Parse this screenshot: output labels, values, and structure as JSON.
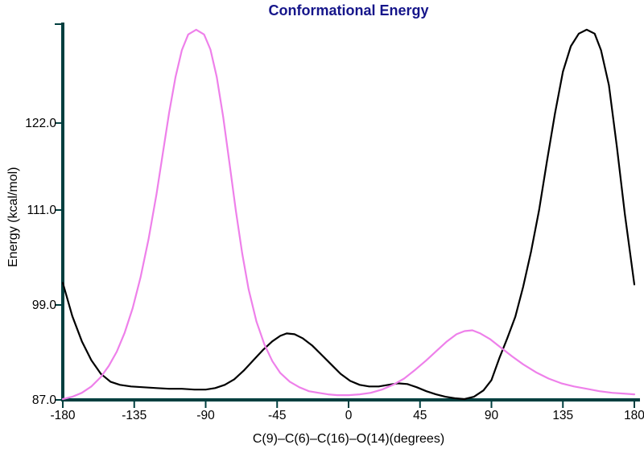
{
  "colors": {
    "background": "#ffffff",
    "title": "#15158a",
    "axis": "#003f3f",
    "text": "#000000"
  },
  "chart_data": {
    "type": "line",
    "title": "Conformational Energy",
    "xlabel": "C(9)–C(6)–C(16)–O(14)(degrees)",
    "ylabel": "Energy (kcal/mol)",
    "xlim": [
      -180,
      180
    ],
    "ylim": [
      87,
      134.5
    ],
    "x_ticks": [
      -180,
      -135,
      -90,
      -45,
      0,
      45,
      90,
      135,
      180
    ],
    "x_tick_labels": [
      "-180",
      "-135",
      "-90",
      "-45",
      "0",
      "45",
      "90",
      "135",
      "180"
    ],
    "y_ticks": [
      87,
      99,
      111,
      122
    ],
    "y_tick_labels": [
      "87.0",
      "99.0",
      "111.0",
      "122.0"
    ],
    "grid": false,
    "legend": "none",
    "series": [
      {
        "name": "black",
        "color": "#000000",
        "points": [
          [
            -180,
            101.8
          ],
          [
            -174,
            97.6
          ],
          [
            -168,
            94.4
          ],
          [
            -162,
            92.0
          ],
          [
            -156,
            90.3
          ],
          [
            -150,
            89.3
          ],
          [
            -144,
            88.9
          ],
          [
            -137,
            88.7
          ],
          [
            -129,
            88.6
          ],
          [
            -121,
            88.5
          ],
          [
            -113,
            88.4
          ],
          [
            -105,
            88.4
          ],
          [
            -97,
            88.3
          ],
          [
            -90,
            88.3
          ],
          [
            -84,
            88.5
          ],
          [
            -78,
            88.9
          ],
          [
            -72,
            89.6
          ],
          [
            -66,
            90.7
          ],
          [
            -60,
            92.0
          ],
          [
            -54,
            93.3
          ],
          [
            -48,
            94.4
          ],
          [
            -43,
            95.1
          ],
          [
            -39,
            95.4
          ],
          [
            -34,
            95.3
          ],
          [
            -29,
            94.8
          ],
          [
            -23,
            93.9
          ],
          [
            -17,
            92.7
          ],
          [
            -11,
            91.5
          ],
          [
            -5,
            90.3
          ],
          [
            1,
            89.4
          ],
          [
            7,
            88.9
          ],
          [
            13,
            88.7
          ],
          [
            19,
            88.7
          ],
          [
            25,
            88.9
          ],
          [
            31,
            89.1
          ],
          [
            37,
            89.0
          ],
          [
            43,
            88.6
          ],
          [
            49,
            88.1
          ],
          [
            55,
            87.7
          ],
          [
            61,
            87.4
          ],
          [
            67,
            87.2
          ],
          [
            73,
            87.1
          ],
          [
            79,
            87.4
          ],
          [
            85,
            88.2
          ],
          [
            90,
            89.5
          ],
          [
            95,
            92.3
          ],
          [
            100,
            94.8
          ],
          [
            105,
            97.5
          ],
          [
            110,
            101.3
          ],
          [
            115,
            105.8
          ],
          [
            120,
            111.0
          ],
          [
            125,
            117.2
          ],
          [
            130,
            123.2
          ],
          [
            135,
            128.5
          ],
          [
            140,
            131.7
          ],
          [
            145,
            133.3
          ],
          [
            150,
            133.8
          ],
          [
            155,
            133.3
          ],
          [
            159,
            131.2
          ],
          [
            164,
            126.8
          ],
          [
            169,
            119.0
          ],
          [
            174,
            110.5
          ],
          [
            180,
            101.6
          ]
        ]
      },
      {
        "name": "magenta",
        "color": "#ee80ea",
        "points": [
          [
            -180,
            87.1
          ],
          [
            -174,
            87.4
          ],
          [
            -168,
            87.9
          ],
          [
            -162,
            88.7
          ],
          [
            -156,
            89.9
          ],
          [
            -151,
            91.3
          ],
          [
            -146,
            93.1
          ],
          [
            -141,
            95.5
          ],
          [
            -136,
            98.6
          ],
          [
            -131,
            102.5
          ],
          [
            -126,
            107.3
          ],
          [
            -121,
            113.0
          ],
          [
            -117,
            118.2
          ],
          [
            -113,
            123.3
          ],
          [
            -109,
            127.8
          ],
          [
            -105,
            131.2
          ],
          [
            -101,
            133.2
          ],
          [
            -96,
            133.8
          ],
          [
            -91,
            133.2
          ],
          [
            -87,
            131.3
          ],
          [
            -83,
            127.8
          ],
          [
            -79,
            122.8
          ],
          [
            -75,
            116.9
          ],
          [
            -71,
            110.9
          ],
          [
            -67,
            105.5
          ],
          [
            -63,
            101.0
          ],
          [
            -58,
            96.9
          ],
          [
            -53,
            94.0
          ],
          [
            -48,
            91.9
          ],
          [
            -43,
            90.4
          ],
          [
            -37,
            89.3
          ],
          [
            -31,
            88.6
          ],
          [
            -25,
            88.1
          ],
          [
            -19,
            87.9
          ],
          [
            -13,
            87.7
          ],
          [
            -7,
            87.6
          ],
          [
            0,
            87.6
          ],
          [
            7,
            87.7
          ],
          [
            14,
            87.9
          ],
          [
            21,
            88.3
          ],
          [
            28,
            88.9
          ],
          [
            35,
            89.7
          ],
          [
            42,
            90.8
          ],
          [
            49,
            92.0
          ],
          [
            56,
            93.3
          ],
          [
            62,
            94.4
          ],
          [
            68,
            95.3
          ],
          [
            73,
            95.7
          ],
          [
            78,
            95.8
          ],
          [
            83,
            95.4
          ],
          [
            89,
            94.7
          ],
          [
            96,
            93.6
          ],
          [
            103,
            92.5
          ],
          [
            110,
            91.5
          ],
          [
            118,
            90.5
          ],
          [
            126,
            89.7
          ],
          [
            134,
            89.1
          ],
          [
            142,
            88.7
          ],
          [
            150,
            88.4
          ],
          [
            158,
            88.1
          ],
          [
            166,
            87.9
          ],
          [
            173,
            87.8
          ],
          [
            180,
            87.7
          ]
        ]
      }
    ]
  }
}
